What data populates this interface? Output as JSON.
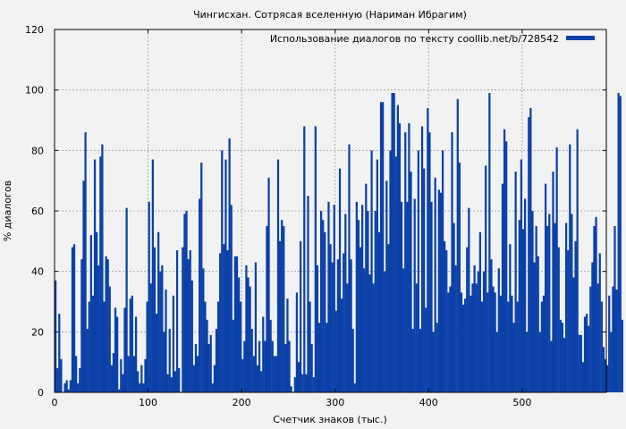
{
  "chart_data": {
    "type": "bar",
    "title": "Чингисхан. Сотрясая вселенную (Нариман Ибрагим)",
    "xlabel": "Счетчик знаков (тыс.)",
    "ylabel": "% диалогов",
    "xlim": [
      0,
      590
    ],
    "ylim": [
      0,
      120
    ],
    "xticks": [
      "0",
      "100",
      "200",
      "300",
      "400",
      "500"
    ],
    "xtick_values": [
      0,
      100,
      200,
      300,
      400,
      500
    ],
    "yticks": [
      "0",
      "20",
      "40",
      "60",
      "80",
      "100",
      "120"
    ],
    "ytick_values": [
      0,
      20,
      40,
      60,
      80,
      100,
      120
    ],
    "grid": true,
    "legend_position": "top-right",
    "series": [
      {
        "name": "Использование диалогов по тексту coollib.net/b/728542",
        "color": "#0b40a8",
        "x_start": 0,
        "x_step": 2,
        "values": [
          37,
          8,
          26,
          11,
          0,
          3,
          4,
          1,
          4,
          48,
          49,
          12,
          3,
          8,
          44,
          70,
          86,
          21,
          30,
          52,
          32,
          77,
          53,
          42,
          78,
          82,
          30,
          45,
          44,
          35,
          9,
          13,
          28,
          25,
          1,
          11,
          6,
          28,
          61,
          12,
          31,
          32,
          12,
          25,
          7,
          3,
          9,
          3,
          11,
          30,
          63,
          36,
          77,
          48,
          26,
          53,
          40,
          42,
          20,
          34,
          6,
          21,
          5,
          32,
          7,
          47,
          8,
          0,
          48,
          59,
          60,
          44,
          47,
          37,
          9,
          16,
          12,
          64,
          76,
          41,
          30,
          24,
          16,
          19,
          3,
          9,
          21,
          30,
          46,
          80,
          49,
          77,
          47,
          84,
          62,
          24,
          45,
          45,
          38,
          30,
          11,
          17,
          42,
          38,
          35,
          21,
          12,
          43,
          9,
          17,
          7,
          25,
          17,
          55,
          71,
          24,
          17,
          12,
          12,
          77,
          50,
          57,
          55,
          16,
          31,
          17,
          2,
          0,
          5,
          33,
          10,
          50,
          6,
          88,
          6,
          65,
          30,
          16,
          5,
          88,
          42,
          23,
          60,
          57,
          53,
          23,
          63,
          49,
          43,
          62,
          27,
          44,
          74,
          31,
          46,
          59,
          36,
          82,
          44,
          21,
          3,
          63,
          57,
          48,
          62,
          41,
          69,
          60,
          39,
          80,
          36,
          60,
          77,
          53,
          96,
          96,
          40,
          70,
          49,
          80,
          99,
          99,
          78,
          95,
          89,
          63,
          41,
          86,
          63,
          89,
          73,
          21,
          64,
          36,
          80,
          21,
          88,
          74,
          28,
          94,
          86,
          63,
          20,
          71,
          23,
          67,
          66,
          80,
          50,
          47,
          33,
          35,
          86,
          56,
          42,
          97,
          76,
          33,
          29,
          31,
          48,
          61,
          32,
          36,
          42,
          36,
          40,
          53,
          30,
          40,
          75,
          33,
          99,
          44,
          35,
          33,
          20,
          41,
          32,
          69,
          87,
          83,
          30,
          49,
          32,
          23,
          73,
          30,
          57,
          77,
          54,
          64,
          20,
          91,
          94,
          60,
          43,
          55,
          45,
          20,
          30,
          32,
          69,
          55,
          59,
          17,
          73,
          56,
          81,
          48,
          24,
          23,
          18,
          56,
          47,
          82,
          59,
          38,
          50,
          87,
          19,
          19,
          10,
          25,
          26,
          22,
          35,
          43,
          55,
          58,
          36,
          46,
          30,
          15,
          11,
          9,
          32,
          20,
          35,
          55,
          34,
          99,
          98,
          24
        ]
      }
    ]
  }
}
